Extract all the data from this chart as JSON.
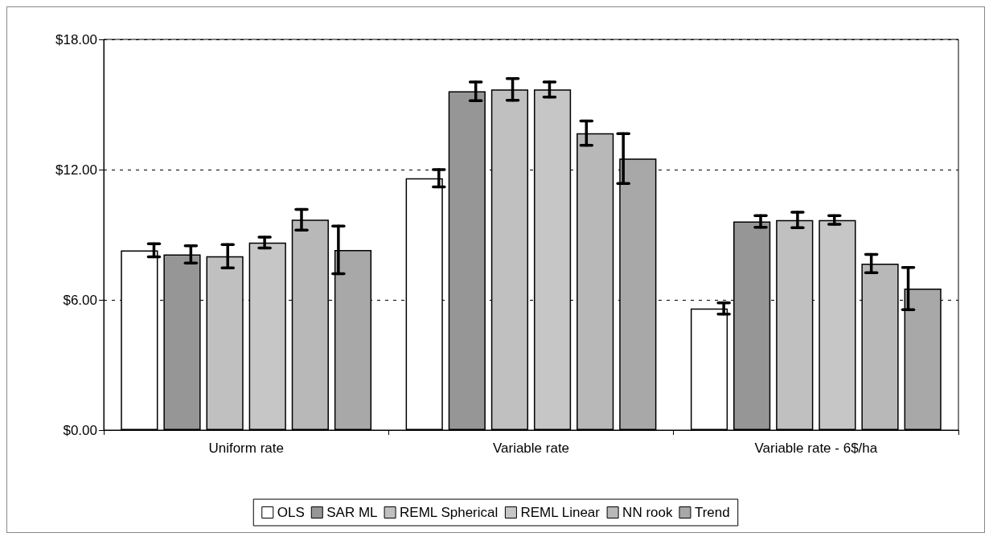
{
  "chart_data": {
    "type": "bar",
    "categories": [
      "Uniform rate",
      "Variable rate",
      "Variable rate - 6$/ha"
    ],
    "series": [
      {
        "name": "OLS",
        "color": "#ffffff",
        "values": [
          8.28,
          11.6,
          5.6
        ],
        "errors": [
          0.3,
          0.4,
          0.26
        ]
      },
      {
        "name": "SAR ML",
        "color": "#969696",
        "values": [
          8.09,
          15.61,
          9.61
        ],
        "errors": [
          0.4,
          0.43,
          0.27
        ]
      },
      {
        "name": "REML Spherical",
        "color": "#c0c0c0",
        "values": [
          8.01,
          15.69,
          9.68
        ],
        "errors": [
          0.54,
          0.5,
          0.36
        ]
      },
      {
        "name": "REML Linear",
        "color": "#c6c6c6",
        "values": [
          8.64,
          15.69,
          9.68
        ],
        "errors": [
          0.25,
          0.35,
          0.2
        ]
      },
      {
        "name": "NN rook",
        "color": "#b8b8b8",
        "values": [
          9.69,
          13.68,
          7.67
        ],
        "errors": [
          0.48,
          0.56,
          0.42
        ]
      },
      {
        "name": "Trend",
        "color": "#a8a8a8",
        "values": [
          8.3,
          12.51,
          6.52
        ],
        "errors": [
          1.1,
          1.15,
          0.97
        ]
      }
    ],
    "ylim": [
      0,
      18
    ],
    "yticks": [
      {
        "value": 0,
        "label": "$0.00"
      },
      {
        "value": 6,
        "label": "$6.00"
      },
      {
        "value": 12,
        "label": "$12.00"
      },
      {
        "value": 18,
        "label": "$18.00"
      }
    ],
    "grid": "y",
    "line_style": "dashed",
    "legend": "bottom"
  }
}
